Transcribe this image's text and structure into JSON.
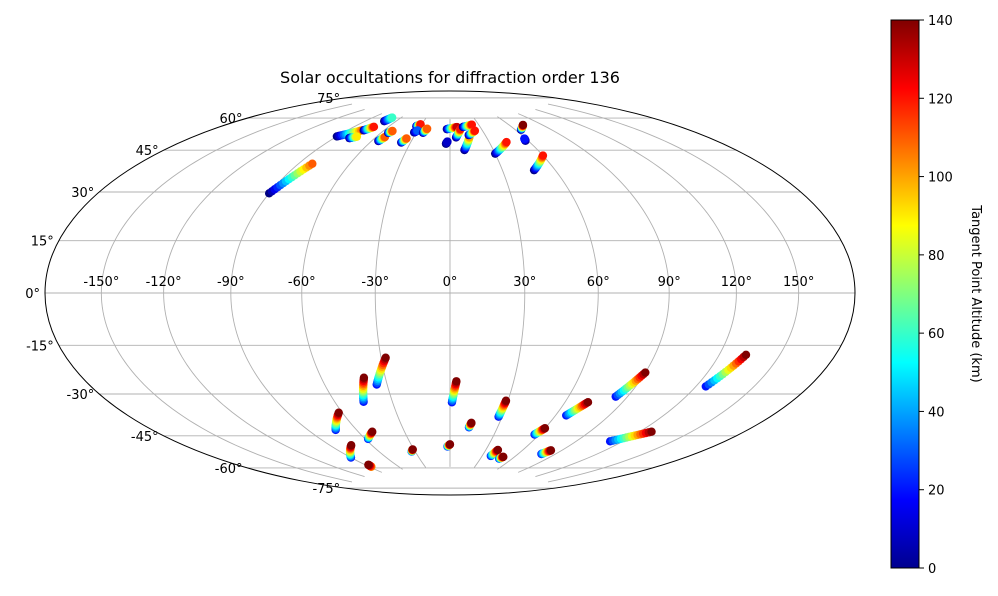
{
  "chart_data": {
    "type": "scatter",
    "projection": "Hammer-Aitoff",
    "title": "Solar occultations for diffraction order 136",
    "grid": true,
    "x_tick_labels": [
      "-150°",
      "-120°",
      "-90°",
      "-60°",
      "-30°",
      "0°",
      "30°",
      "60°",
      "90°",
      "120°",
      "150°"
    ],
    "y_tick_labels": [
      "75°",
      "60°",
      "45°",
      "30°",
      "15°",
      "0°",
      "-15°",
      "-30°",
      "-45°",
      "-60°",
      "-75°"
    ],
    "colorbar": {
      "label": "Tangent Point Altitude (km)",
      "colormap": "jet",
      "range": [
        0,
        140
      ],
      "tick_labels": [
        "0",
        "20",
        "40",
        "60",
        "80",
        "100",
        "120",
        "140"
      ]
    },
    "series": [
      {
        "lon": [
          -90,
          -82
        ],
        "lat": [
          38,
          51
        ],
        "alt_range": [
          0,
          110
        ]
      },
      {
        "lon": [
          -90,
          -78
        ],
        "lat": [
          63,
          67
        ],
        "alt_range": [
          0,
          110
        ]
      },
      {
        "lon": [
          -77,
          -73
        ],
        "lat": [
          67,
          69
        ],
        "alt_range": [
          0,
          120
        ]
      },
      {
        "lon": [
          -72,
          -70
        ],
        "lat": [
          72,
          74
        ],
        "alt_range": [
          0,
          60
        ]
      },
      {
        "lon": [
          -79,
          -75
        ],
        "lat": [
          63,
          64
        ],
        "alt_range": [
          0,
          90
        ]
      },
      {
        "lon": [
          -55,
          -53
        ],
        "lat": [
          63,
          65
        ],
        "alt_range": [
          0,
          110
        ]
      },
      {
        "lon": [
          -54,
          -52
        ],
        "lat": [
          67,
          68
        ],
        "alt_range": [
          0,
          110
        ]
      },
      {
        "lon": [
          -37,
          -35
        ],
        "lat": [
          63,
          65
        ],
        "alt_range": [
          0,
          110
        ]
      },
      {
        "lon": [
          -34,
          -31
        ],
        "lat": [
          71,
          72
        ],
        "alt_range": [
          0,
          120
        ]
      },
      {
        "lon": [
          -32,
          -30
        ],
        "lat": [
          68,
          69
        ],
        "alt_range": [
          0,
          30
        ]
      },
      {
        "lon": [
          -24,
          -22
        ],
        "lat": [
          68,
          70
        ],
        "alt_range": [
          0,
          110
        ]
      },
      {
        "lon": [
          -3,
          -2
        ],
        "lat": [
          63,
          64
        ],
        "alt_range": [
          0,
          10
        ]
      },
      {
        "lon": [
          -3,
          7
        ],
        "lat": [
          70,
          71
        ],
        "alt_range": [
          0,
          130
        ]
      },
      {
        "lon": [
          5,
          10
        ],
        "lat": [
          66,
          70
        ],
        "alt_range": [
          0,
          120
        ]
      },
      {
        "lon": [
          10,
          16
        ],
        "lat": [
          60,
          66
        ],
        "alt_range": [
          0,
          100
        ]
      },
      {
        "lon": [
          13,
          23
        ],
        "lat": [
          71,
          72
        ],
        "alt_range": [
          0,
          120
        ]
      },
      {
        "lon": [
          16,
          23
        ],
        "lat": [
          67,
          69
        ],
        "alt_range": [
          0,
          120
        ]
      },
      {
        "lon": [
          30,
          43
        ],
        "lat": [
          58,
          63
        ],
        "alt_range": [
          0,
          120
        ]
      },
      {
        "lon": [
          48,
          60
        ],
        "lat": [
          50,
          56
        ],
        "alt_range": [
          0,
          120
        ]
      },
      {
        "lon": [
          58,
          59
        ],
        "lat": [
          63,
          64
        ],
        "alt_range": [
          0,
          20
        ]
      },
      {
        "lon": [
          65,
          73
        ],
        "lat": [
          68,
          70
        ],
        "alt_range": [
          0,
          140
        ]
      },
      {
        "lon": [
          -90,
          -75
        ],
        "lat": [
          -67,
          -62
        ],
        "alt_range": [
          20,
          140
        ]
      },
      {
        "lon": [
          -73,
          -62
        ],
        "lat": [
          -55,
          -48
        ],
        "alt_range": [
          20,
          140
        ]
      },
      {
        "lon": [
          -58,
          -51
        ],
        "lat": [
          -60,
          -57
        ],
        "alt_range": [
          20,
          140
        ]
      },
      {
        "lon": [
          -45,
          -40
        ],
        "lat": [
          -44,
          -34
        ],
        "alt_range": [
          20,
          140
        ]
      },
      {
        "lon": [
          -35,
          -28
        ],
        "lat": [
          -37,
          -26
        ],
        "alt_range": [
          20,
          140
        ]
      },
      {
        "lon": [
          -33,
          -31
        ],
        "lat": [
          -67,
          -66
        ],
        "alt_range": [
          20,
          140
        ]
      },
      {
        "lon": [
          -88,
          -87
        ],
        "lat": [
          -72,
          -71
        ],
        "alt_range": [
          100,
          140
        ]
      },
      {
        "lon": [
          1,
          3
        ],
        "lat": [
          -45,
          -36
        ],
        "alt_range": [
          20,
          140
        ]
      },
      {
        "lon": [
          -2,
          0
        ],
        "lat": [
          -65,
          -64
        ],
        "alt_range": [
          20,
          140
        ]
      },
      {
        "lon": [
          12,
          13
        ],
        "lat": [
          -56,
          -54
        ],
        "alt_range": [
          20,
          140
        ]
      },
      {
        "lon": [
          28,
          29
        ],
        "lat": [
          -51,
          -44
        ],
        "alt_range": [
          20,
          140
        ]
      },
      {
        "lon": [
          38,
          40
        ],
        "lat": [
          -69,
          -66
        ],
        "alt_range": [
          20,
          140
        ]
      },
      {
        "lon": [
          48,
          50
        ],
        "lat": [
          -70,
          -69
        ],
        "alt_range": [
          20,
          140
        ]
      },
      {
        "lon": [
          57,
          60
        ],
        "lat": [
          -58,
          -55
        ],
        "alt_range": [
          20,
          140
        ]
      },
      {
        "lon": [
          66,
          72
        ],
        "lat": [
          -49,
          -43
        ],
        "alt_range": [
          20,
          140
        ]
      },
      {
        "lon": [
          84,
          90
        ],
        "lat": [
          -40,
          -30
        ],
        "alt_range": [
          20,
          140
        ]
      },
      {
        "lon": [
          79,
          82
        ],
        "lat": [
          -66,
          -64
        ],
        "alt_range": [
          20,
          140
        ]
      },
      {
        "lon": [
          112,
          127
        ],
        "lat": [
          -57,
          -51
        ],
        "alt_range": [
          20,
          140
        ]
      },
      {
        "lon": [
          125,
          133
        ],
        "lat": [
          -33,
          -21
        ],
        "alt_range": [
          20,
          140
        ]
      }
    ]
  }
}
